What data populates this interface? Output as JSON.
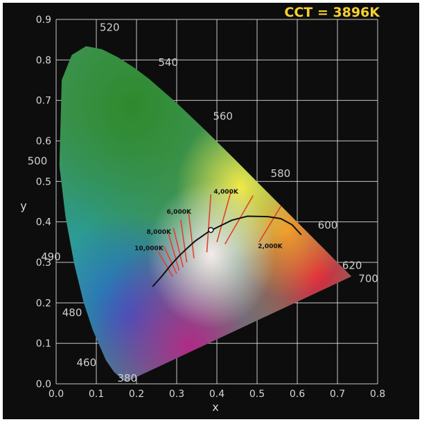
{
  "chart_data": {
    "type": "scatter",
    "title": "CCT = 3896K",
    "xlabel": "x",
    "ylabel": "y",
    "xlim": [
      0.0,
      0.8
    ],
    "ylim": [
      0.0,
      0.9
    ],
    "grid": true,
    "x_ticks": [
      "0.0",
      "0.1",
      "0.2",
      "0.3",
      "0.4",
      "0.5",
      "0.6",
      "0.7",
      "0.8"
    ],
    "y_ticks": [
      "0.0",
      "0.1",
      "0.2",
      "0.3",
      "0.4",
      "0.5",
      "0.6",
      "0.7",
      "0.8",
      "0.9"
    ],
    "colors": {
      "background": "#0d0d0d",
      "grid": "#e8e8e8",
      "title": "#f5d033",
      "locus": "#111111",
      "isotherm": "#e0402a"
    },
    "spectral_locus": [
      {
        "x": 0.1741,
        "y": 0.005
      },
      {
        "x": 0.1738,
        "y": 0.0049
      },
      {
        "x": 0.1666,
        "y": 0.0089
      },
      {
        "x": 0.144,
        "y": 0.0297
      },
      {
        "x": 0.1241,
        "y": 0.0578
      },
      {
        "x": 0.0913,
        "y": 0.1327
      },
      {
        "x": 0.0687,
        "y": 0.2007
      },
      {
        "x": 0.0454,
        "y": 0.295
      },
      {
        "x": 0.0235,
        "y": 0.4127
      },
      {
        "x": 0.0082,
        "y": 0.5384
      },
      {
        "x": 0.0139,
        "y": 0.7502
      },
      {
        "x": 0.0389,
        "y": 0.812
      },
      {
        "x": 0.0743,
        "y": 0.8338
      },
      {
        "x": 0.1142,
        "y": 0.8262
      },
      {
        "x": 0.1547,
        "y": 0.8059
      },
      {
        "x": 0.1929,
        "y": 0.7816
      },
      {
        "x": 0.2296,
        "y": 0.7543
      },
      {
        "x": 0.3016,
        "y": 0.6923
      },
      {
        "x": 0.3731,
        "y": 0.6245
      },
      {
        "x": 0.4441,
        "y": 0.5547
      },
      {
        "x": 0.5125,
        "y": 0.4866
      },
      {
        "x": 0.5752,
        "y": 0.4242
      },
      {
        "x": 0.627,
        "y": 0.3725
      },
      {
        "x": 0.6658,
        "y": 0.334
      },
      {
        "x": 0.6915,
        "y": 0.3083
      },
      {
        "x": 0.7347,
        "y": 0.2653
      }
    ],
    "wavelength_labels": [
      {
        "text": "380",
        "x": 0.18,
        "y": 0.005
      },
      {
        "text": "460",
        "x": 0.144,
        "y": 0.03
      },
      {
        "text": "480",
        "x": 0.091,
        "y": 0.133
      },
      {
        "text": "490",
        "x": 0.045,
        "y": 0.295
      },
      {
        "text": "500",
        "x": 0.008,
        "y": 0.538
      },
      {
        "text": "520",
        "x": 0.074,
        "y": 0.834
      },
      {
        "text": "540",
        "x": 0.23,
        "y": 0.754
      },
      {
        "text": "560",
        "x": 0.373,
        "y": 0.625
      },
      {
        "text": "580",
        "x": 0.513,
        "y": 0.487
      },
      {
        "text": "600",
        "x": 0.627,
        "y": 0.373
      },
      {
        "text": "620",
        "x": 0.691,
        "y": 0.308
      },
      {
        "text": "700",
        "x": 0.735,
        "y": 0.265
      }
    ],
    "planckian_locus": [
      {
        "x": 0.24,
        "y": 0.24
      },
      {
        "x": 0.264,
        "y": 0.267
      },
      {
        "x": 0.285,
        "y": 0.293
      },
      {
        "x": 0.306,
        "y": 0.316
      },
      {
        "x": 0.323,
        "y": 0.332
      },
      {
        "x": 0.345,
        "y": 0.352
      },
      {
        "x": 0.381,
        "y": 0.377
      },
      {
        "x": 0.437,
        "y": 0.404
      },
      {
        "x": 0.476,
        "y": 0.414
      },
      {
        "x": 0.527,
        "y": 0.413
      },
      {
        "x": 0.559,
        "y": 0.408
      },
      {
        "x": 0.587,
        "y": 0.393
      },
      {
        "x": 0.61,
        "y": 0.368
      }
    ],
    "isotherms": [
      {
        "label": "10,000K",
        "x1": 0.255,
        "y1": 0.325,
        "x2": 0.29,
        "y2": 0.265
      },
      {
        "label": "",
        "x1": 0.268,
        "y1": 0.34,
        "x2": 0.3,
        "y2": 0.272
      },
      {
        "label": "8,000K",
        "x1": 0.28,
        "y1": 0.37,
        "x2": 0.306,
        "y2": 0.28
      },
      {
        "label": "",
        "x1": 0.292,
        "y1": 0.385,
        "x2": 0.316,
        "y2": 0.288
      },
      {
        "label": "6,000K",
        "x1": 0.31,
        "y1": 0.405,
        "x2": 0.325,
        "y2": 0.3
      },
      {
        "label": "",
        "x1": 0.33,
        "y1": 0.42,
        "x2": 0.343,
        "y2": 0.31
      },
      {
        "label": "4,000K",
        "x1": 0.385,
        "y1": 0.468,
        "x2": 0.375,
        "y2": 0.325
      },
      {
        "label": "",
        "x1": 0.435,
        "y1": 0.475,
        "x2": 0.4,
        "y2": 0.35
      },
      {
        "label": "",
        "x1": 0.49,
        "y1": 0.465,
        "x2": 0.42,
        "y2": 0.345
      },
      {
        "label": "2,000K",
        "x1": 0.56,
        "y1": 0.44,
        "x2": 0.505,
        "y2": 0.35
      }
    ],
    "cct_label_positions": [
      {
        "text": "10,000K",
        "x": 0.195,
        "y": 0.33
      },
      {
        "text": "8,000K",
        "x": 0.225,
        "y": 0.37
      },
      {
        "text": "6,000K",
        "x": 0.275,
        "y": 0.42
      },
      {
        "text": "4,000K",
        "x": 0.392,
        "y": 0.47
      },
      {
        "text": "2,000K",
        "x": 0.502,
        "y": 0.335
      }
    ],
    "marked_point": {
      "x": 0.385,
      "y": 0.38
    }
  }
}
